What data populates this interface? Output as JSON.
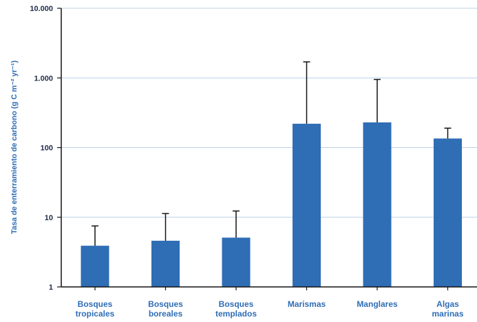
{
  "chart_data": {
    "type": "bar",
    "title": "",
    "xlabel": "",
    "ylabel": "Tasa de enterramiento de carbono (g C m⁻² yr⁻¹)",
    "yscale": "log",
    "ylim": [
      1,
      10000
    ],
    "yticks": [
      1,
      10,
      100,
      1000,
      10000
    ],
    "ytick_labels": [
      "1",
      "10",
      "100",
      "1.000",
      "10.000"
    ],
    "grid": "horizontal",
    "categories": [
      [
        "Bosques",
        "tropicales"
      ],
      [
        "Bosques",
        "boreales"
      ],
      [
        "Bosques",
        "templados"
      ],
      [
        "Marismas"
      ],
      [
        "Manglares"
      ],
      [
        "Algas",
        "marinas"
      ]
    ],
    "values": [
      3.9,
      4.6,
      5.1,
      220,
      230,
      135
    ],
    "error_upper": [
      7.5,
      11.3,
      12.3,
      1700,
      950,
      190
    ],
    "colors": {
      "bar": "#2f6db5",
      "error": "#111111",
      "grid": "#bcd0e6",
      "axis": "#111111"
    }
  }
}
